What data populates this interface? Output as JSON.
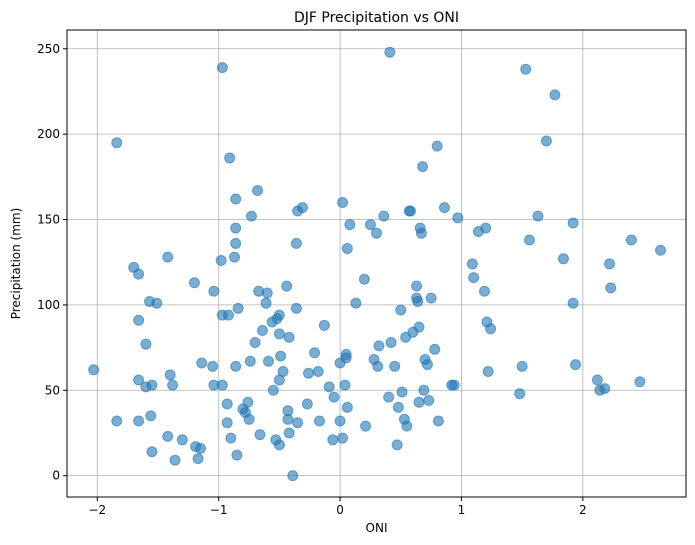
{
  "chart_data": {
    "type": "scatter",
    "title": "DJF Precipitation vs ONI",
    "xlabel": "ONI",
    "ylabel": "Precipitation (mm)",
    "xlim": [
      -2.25,
      2.85
    ],
    "ylim": [
      -12.5,
      261
    ],
    "xticks": [
      -2,
      -1,
      0,
      1,
      2
    ],
    "yticks": [
      0,
      50,
      100,
      150,
      200,
      250
    ],
    "grid": true,
    "marker_color": "#1f77b4",
    "marker_opacity": 0.6,
    "series": [
      {
        "points": [
          [
            -2.03,
            62
          ],
          [
            -1.84,
            195
          ],
          [
            -1.84,
            32
          ],
          [
            -1.7,
            122
          ],
          [
            -1.66,
            118
          ],
          [
            -1.66,
            91
          ],
          [
            -1.66,
            56
          ],
          [
            -1.66,
            32
          ],
          [
            -1.6,
            77
          ],
          [
            -1.6,
            52
          ],
          [
            -1.57,
            102
          ],
          [
            -1.56,
            35
          ],
          [
            -1.55,
            53
          ],
          [
            -1.55,
            14
          ],
          [
            -1.51,
            101
          ],
          [
            -1.42,
            128
          ],
          [
            -1.42,
            23
          ],
          [
            -1.4,
            59
          ],
          [
            -1.38,
            53
          ],
          [
            -1.36,
            9
          ],
          [
            -1.3,
            21
          ],
          [
            -1.2,
            113
          ],
          [
            -1.19,
            17
          ],
          [
            -1.17,
            10
          ],
          [
            -1.15,
            16
          ],
          [
            -1.14,
            66
          ],
          [
            -1.05,
            64
          ],
          [
            -1.04,
            108
          ],
          [
            -1.04,
            53
          ],
          [
            -0.98,
            126
          ],
          [
            -0.97,
            239
          ],
          [
            -0.97,
            94
          ],
          [
            -0.97,
            53
          ],
          [
            -0.93,
            42
          ],
          [
            -0.93,
            31
          ],
          [
            -0.92,
            94
          ],
          [
            -0.91,
            186
          ],
          [
            -0.9,
            22
          ],
          [
            -0.87,
            128
          ],
          [
            -0.86,
            162
          ],
          [
            -0.86,
            145
          ],
          [
            -0.86,
            136
          ],
          [
            -0.86,
            64
          ],
          [
            -0.85,
            12
          ],
          [
            -0.84,
            98
          ],
          [
            -0.8,
            39
          ],
          [
            -0.78,
            37
          ],
          [
            -0.76,
            43
          ],
          [
            -0.75,
            33
          ],
          [
            -0.74,
            67
          ],
          [
            -0.73,
            152
          ],
          [
            -0.7,
            78
          ],
          [
            -0.68,
            167
          ],
          [
            -0.67,
            108
          ],
          [
            -0.66,
            24
          ],
          [
            -0.64,
            85
          ],
          [
            -0.61,
            101
          ],
          [
            -0.6,
            107
          ],
          [
            -0.59,
            67
          ],
          [
            -0.56,
            90
          ],
          [
            -0.55,
            50
          ],
          [
            -0.53,
            21
          ],
          [
            -0.52,
            92
          ],
          [
            -0.5,
            94
          ],
          [
            -0.5,
            83
          ],
          [
            -0.5,
            56
          ],
          [
            -0.5,
            18
          ],
          [
            -0.49,
            70
          ],
          [
            -0.47,
            61
          ],
          [
            -0.44,
            111
          ],
          [
            -0.43,
            38
          ],
          [
            -0.43,
            33
          ],
          [
            -0.42,
            81
          ],
          [
            -0.42,
            25
          ],
          [
            -0.39,
            0
          ],
          [
            -0.36,
            136
          ],
          [
            -0.36,
            98
          ],
          [
            -0.35,
            155
          ],
          [
            -0.35,
            31
          ],
          [
            -0.31,
            157
          ],
          [
            -0.27,
            42
          ],
          [
            -0.26,
            60
          ],
          [
            -0.21,
            72
          ],
          [
            -0.18,
            61
          ],
          [
            -0.17,
            32
          ],
          [
            -0.13,
            88
          ],
          [
            -0.09,
            52
          ],
          [
            -0.06,
            21
          ],
          [
            -0.05,
            46
          ],
          [
            0,
            32
          ],
          [
            0.0,
            66
          ],
          [
            0.02,
            160
          ],
          [
            0.02,
            22
          ],
          [
            0.04,
            53
          ],
          [
            0.05,
            69
          ],
          [
            0.05,
            71
          ],
          [
            0.06,
            40
          ],
          [
            0.06,
            133
          ],
          [
            0.08,
            147
          ],
          [
            0.13,
            101
          ],
          [
            0.2,
            115
          ],
          [
            0.21,
            29
          ],
          [
            0.25,
            147
          ],
          [
            0.28,
            68
          ],
          [
            0.3,
            142
          ],
          [
            0.31,
            64
          ],
          [
            0.32,
            76
          ],
          [
            0.36,
            152
          ],
          [
            0.4,
            46
          ],
          [
            0.41,
            248
          ],
          [
            0.42,
            78
          ],
          [
            0.45,
            64
          ],
          [
            0.47,
            18
          ],
          [
            0.48,
            40
          ],
          [
            0.5,
            97
          ],
          [
            0.51,
            49
          ],
          [
            0.53,
            33
          ],
          [
            0.54,
            81
          ],
          [
            0.55,
            29
          ],
          [
            0.57,
            155
          ],
          [
            0.58,
            155
          ],
          [
            0.6,
            84
          ],
          [
            0.63,
            111
          ],
          [
            0.63,
            104
          ],
          [
            0.64,
            102
          ],
          [
            0.65,
            87
          ],
          [
            0.65,
            43
          ],
          [
            0.66,
            145
          ],
          [
            0.67,
            142
          ],
          [
            0.68,
            181
          ],
          [
            0.69,
            50
          ],
          [
            0.7,
            68
          ],
          [
            0.72,
            65
          ],
          [
            0.73,
            44
          ],
          [
            0.75,
            104
          ],
          [
            0.78,
            74
          ],
          [
            0.8,
            193
          ],
          [
            0.81,
            32
          ],
          [
            0.86,
            157
          ],
          [
            0.92,
            53
          ],
          [
            0.94,
            53
          ],
          [
            0.97,
            151
          ],
          [
            1.09,
            124
          ],
          [
            1.1,
            116
          ],
          [
            1.14,
            143
          ],
          [
            1.19,
            108
          ],
          [
            1.2,
            145
          ],
          [
            1.21,
            90
          ],
          [
            1.22,
            61
          ],
          [
            1.24,
            86
          ],
          [
            1.48,
            48
          ],
          [
            1.5,
            64
          ],
          [
            1.53,
            238
          ],
          [
            1.56,
            138
          ],
          [
            1.63,
            152
          ],
          [
            1.7,
            196
          ],
          [
            1.77,
            223
          ],
          [
            1.84,
            127
          ],
          [
            1.92,
            148
          ],
          [
            1.92,
            101
          ],
          [
            1.94,
            65
          ],
          [
            2.12,
            56
          ],
          [
            2.14,
            50
          ],
          [
            2.18,
            51
          ],
          [
            2.22,
            124
          ],
          [
            2.23,
            110
          ],
          [
            2.4,
            138
          ],
          [
            2.47,
            55
          ],
          [
            2.64,
            132
          ]
        ]
      }
    ]
  }
}
